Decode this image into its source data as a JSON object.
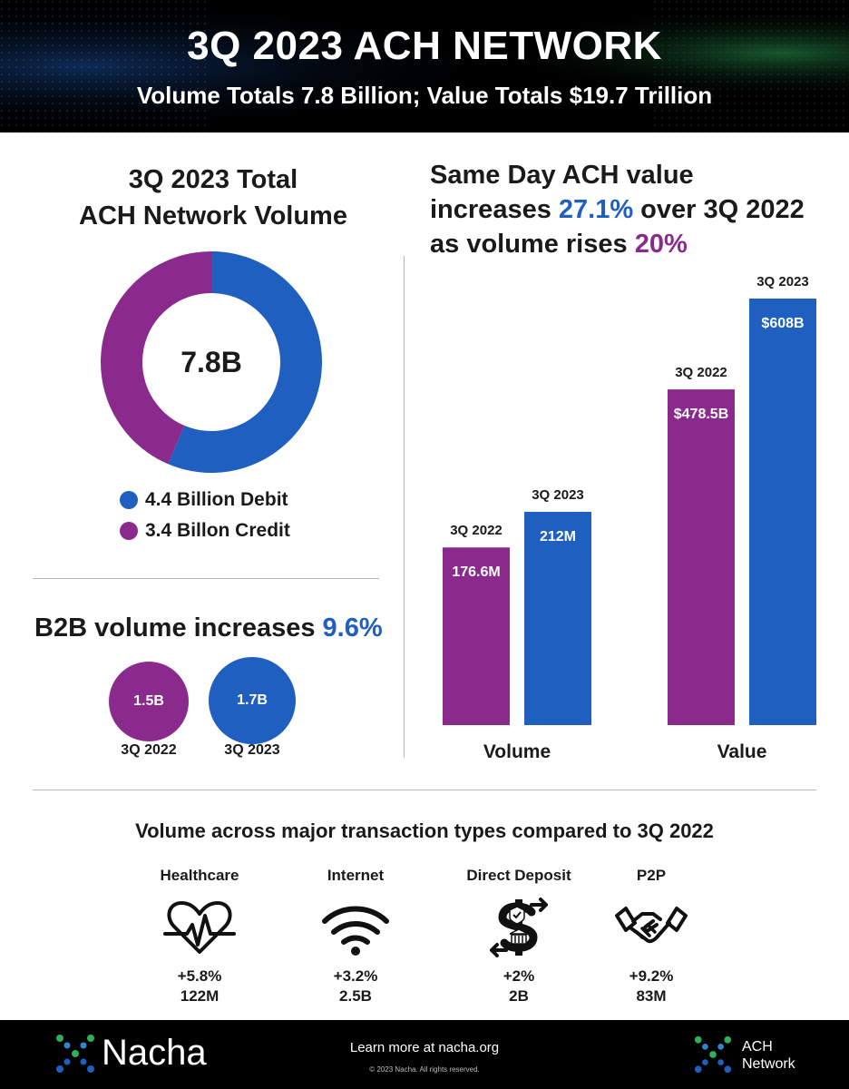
{
  "header": {
    "title": "3Q 2023 ACH NETWORK",
    "subtitle": "Volume Totals 7.8 Billion; Value Totals $19.7 Trillion"
  },
  "total_volume": {
    "title_line1": "3Q 2023 Total",
    "title_line2": "ACH Network Volume",
    "center_label": "7.8B",
    "legend": [
      {
        "label": "4.4 Billion Debit",
        "color": "#1f5fbf"
      },
      {
        "label": "3.4 Billon Credit",
        "color": "#8a2a8c"
      }
    ]
  },
  "b2b": {
    "title_prefix": "B2B volume increases ",
    "title_highlight": "9.6%",
    "circles": [
      {
        "value": "1.5B",
        "period": "3Q 2022",
        "color": "#8a2a8c"
      },
      {
        "value": "1.7B",
        "period": "3Q 2023",
        "color": "#1f5fbf"
      }
    ]
  },
  "same_day": {
    "title_line1": "Same Day ACH value",
    "title_line2_prefix": "increases ",
    "title_line2_highlight": "27.1%",
    "title_line2_suffix": " over 3Q 2022",
    "title_line3_prefix": "as volume rises ",
    "title_line3_highlight": "20%"
  },
  "transactions": {
    "title": "Volume across major transaction types compared to 3Q 2022",
    "items": [
      {
        "name": "Healthcare",
        "icon": "heart-pulse-icon",
        "pct": "+5.8%",
        "volume": "122M"
      },
      {
        "name": "Internet",
        "icon": "wifi-icon",
        "pct": "+3.2%",
        "volume": "2.5B"
      },
      {
        "name": "Direct Deposit",
        "icon": "dollar-bank-icon",
        "pct": "+2%",
        "volume": "2B"
      },
      {
        "name": "P2P",
        "icon": "handshake-icon",
        "pct": "+9.2%",
        "volume": "83M"
      }
    ]
  },
  "footer": {
    "brand": "Nacha",
    "learn_more": "Learn more at nacha.org",
    "copyright": "© 2023 Nacha. All rights reserved.",
    "network_line1": "ACH",
    "network_line2": "Network"
  },
  "colors": {
    "blue": "#1f5fbf",
    "purple": "#8a2a8c",
    "highlight_blue": "#1f5fbf",
    "highlight_purple": "#8a2a8c"
  },
  "chart_data": [
    {
      "type": "pie",
      "title": "3Q 2023 Total ACH Network Volume",
      "categories": [
        "Debit",
        "Credit"
      ],
      "values": [
        4.4,
        3.4
      ],
      "unit": "billion",
      "center_label": "7.8B"
    },
    {
      "type": "bar",
      "title": "Same Day ACH Volume",
      "categories": [
        "3Q 2022",
        "3Q 2023"
      ],
      "values": [
        176.6,
        212
      ],
      "value_labels": [
        "176.6M",
        "212M"
      ],
      "group_label": "Volume",
      "unit": "million"
    },
    {
      "type": "bar",
      "title": "Same Day ACH Value",
      "categories": [
        "3Q 2022",
        "3Q 2023"
      ],
      "values": [
        478.5,
        608
      ],
      "value_labels": [
        "$478.5B",
        "$608B"
      ],
      "group_label": "Value",
      "unit": "billion USD"
    }
  ]
}
